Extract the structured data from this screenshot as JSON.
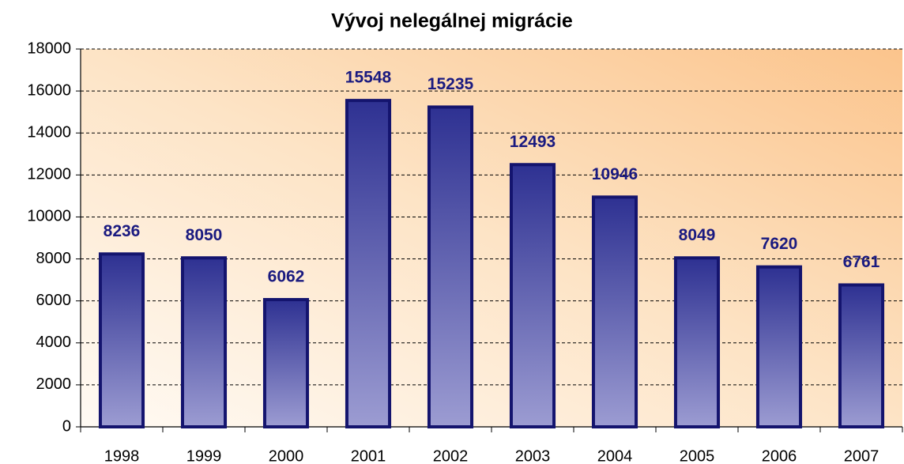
{
  "chart_data": {
    "type": "bar",
    "title": "Vývoj nelegálnej migrácie",
    "categories": [
      "1998",
      "1999",
      "2000",
      "2001",
      "2002",
      "2003",
      "2004",
      "2005",
      "2006",
      "2007"
    ],
    "values": [
      8236,
      8050,
      6062,
      15548,
      15235,
      12493,
      10946,
      8049,
      7620,
      6761
    ],
    "color": "#2e3192",
    "ylim": [
      0,
      18000
    ],
    "yticks": [
      0,
      2000,
      4000,
      6000,
      8000,
      10000,
      12000,
      14000,
      16000,
      18000
    ],
    "grid": true
  }
}
